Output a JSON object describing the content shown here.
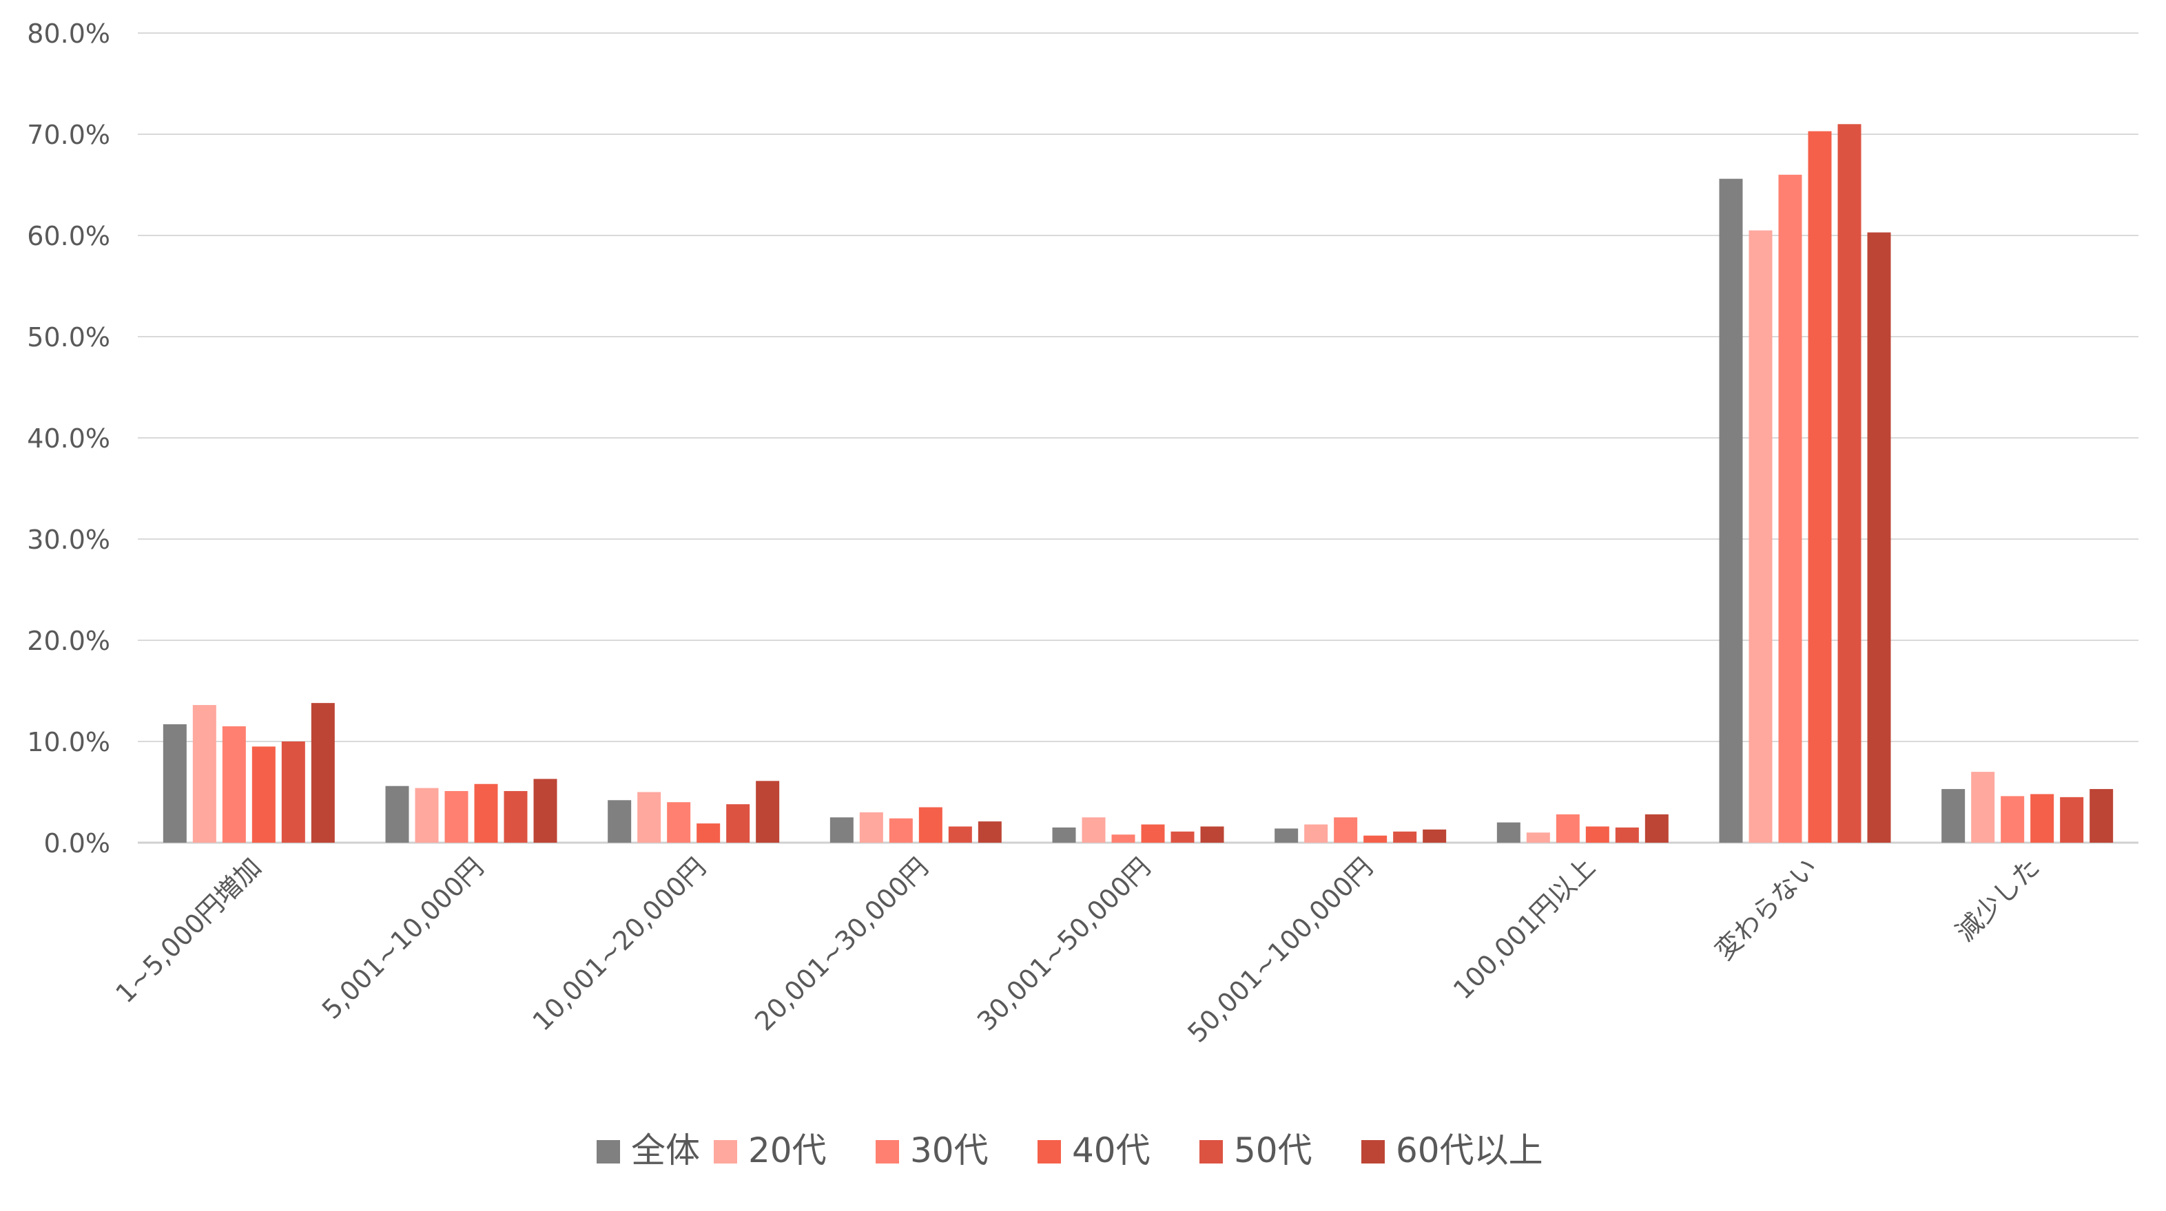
{
  "chart_data": {
    "type": "bar",
    "title": "",
    "xlabel": "",
    "ylabel": "",
    "ylim": [
      0,
      80
    ],
    "yticks": [
      "0.0%",
      "10.0%",
      "20.0%",
      "30.0%",
      "40.0%",
      "50.0%",
      "60.0%",
      "70.0%",
      "80.0%"
    ],
    "grid": true,
    "legend_position": "bottom",
    "categories": [
      "1~5,000円増加",
      "5,001~10,000円",
      "10,001~20,000円",
      "20,001~30,000円",
      "30,001~50,000円",
      "50,001~100,000円",
      "100,001円以上",
      "変わらない",
      "減少した"
    ],
    "series": [
      {
        "name": "全体",
        "color": "#808080",
        "values": [
          11.7,
          5.6,
          4.2,
          2.5,
          1.5,
          1.4,
          2.0,
          65.6,
          5.3
        ]
      },
      {
        "name": "20代",
        "color": "#FFA89E",
        "values": [
          13.6,
          5.4,
          5.0,
          3.0,
          2.5,
          1.8,
          1.0,
          60.5,
          7.0
        ]
      },
      {
        "name": "30代",
        "color": "#FF8070",
        "values": [
          11.5,
          5.1,
          4.0,
          2.4,
          0.8,
          2.5,
          2.8,
          66.0,
          4.6
        ]
      },
      {
        "name": "40代",
        "color": "#F5604A",
        "values": [
          9.5,
          5.8,
          1.9,
          3.5,
          1.8,
          0.7,
          1.6,
          70.3,
          4.8
        ]
      },
      {
        "name": "50代",
        "color": "#DD5342",
        "values": [
          10.0,
          5.1,
          3.8,
          1.6,
          1.1,
          1.1,
          1.5,
          71.0,
          4.5
        ]
      },
      {
        "name": "60代以上",
        "color": "#BD4535",
        "values": [
          13.8,
          6.3,
          6.1,
          2.1,
          1.6,
          1.3,
          2.8,
          60.3,
          5.3
        ]
      }
    ]
  }
}
